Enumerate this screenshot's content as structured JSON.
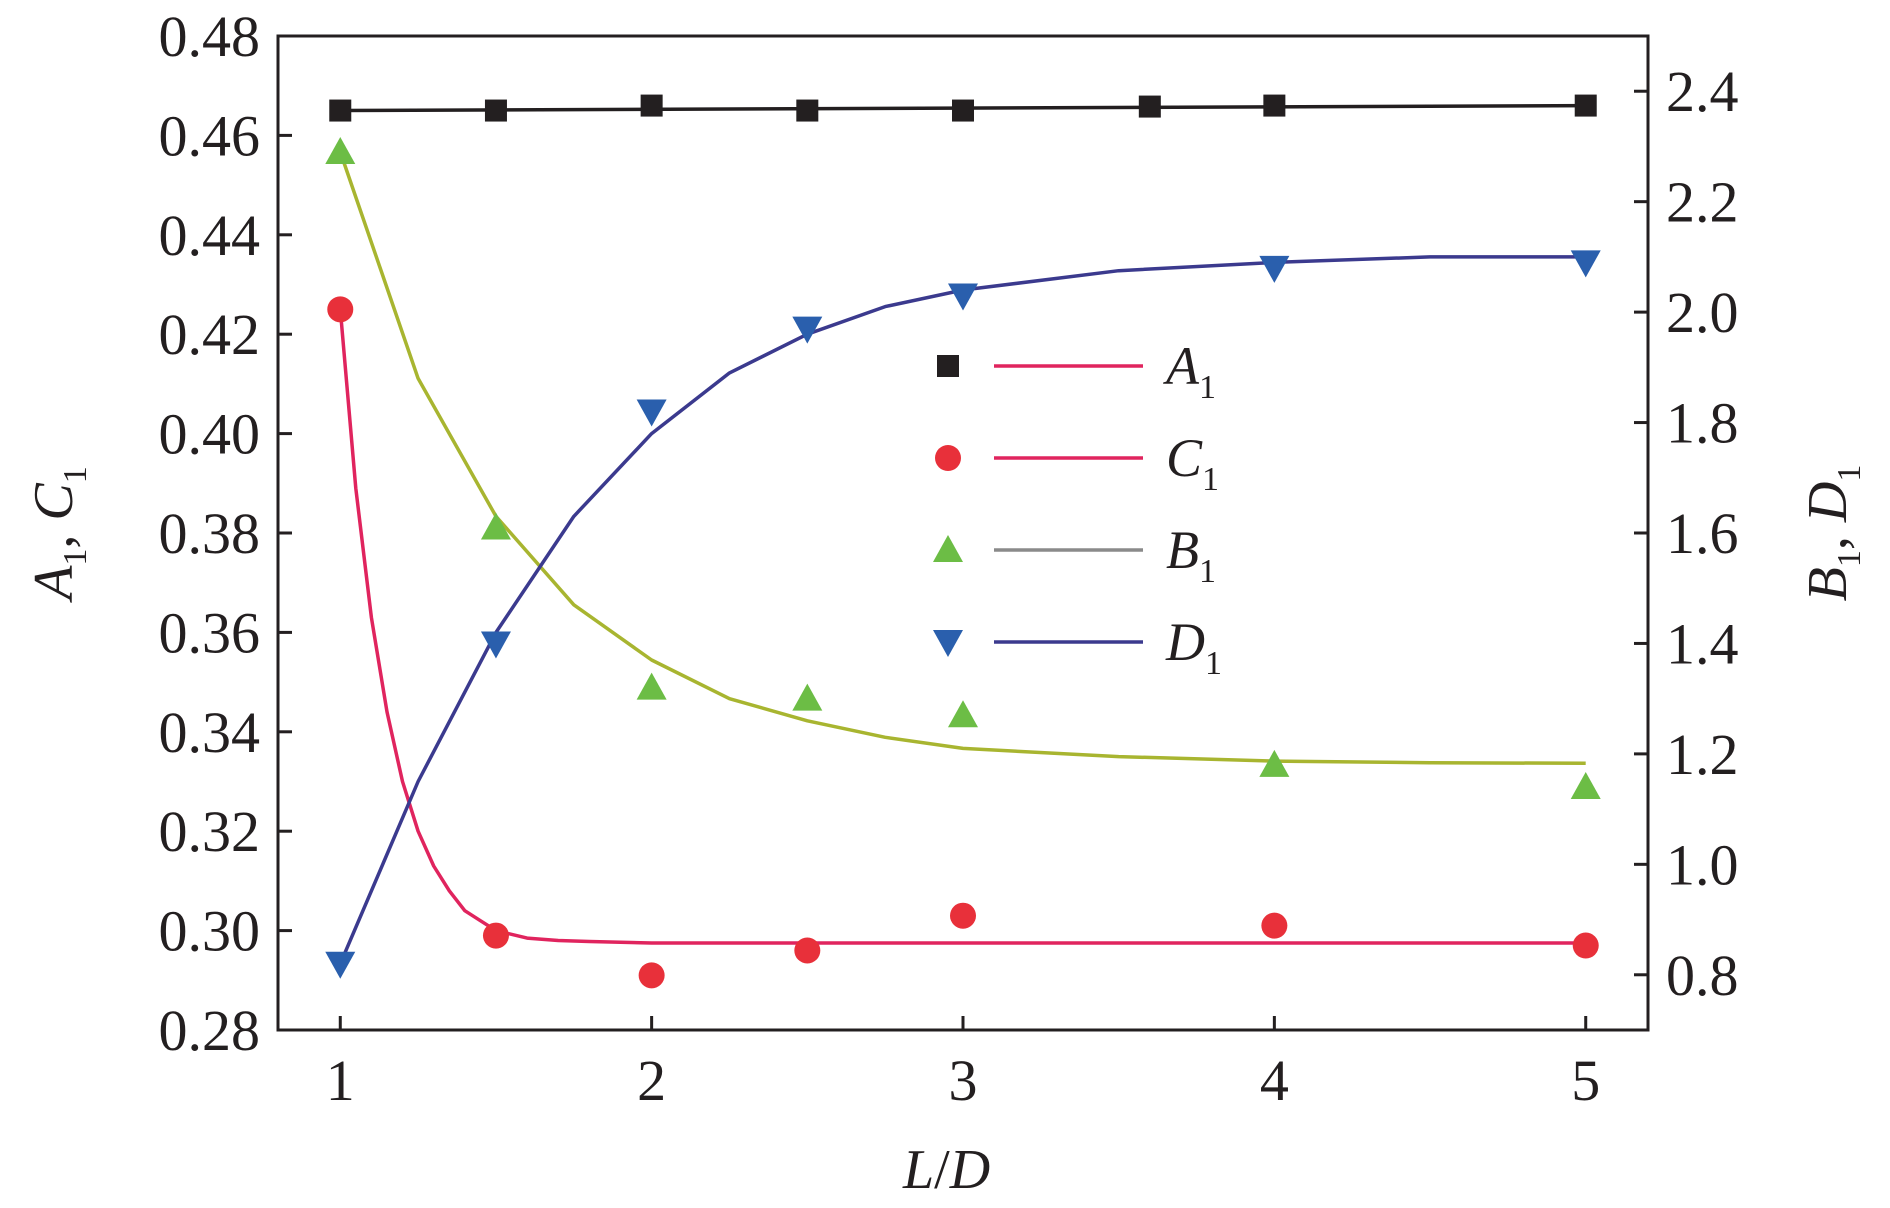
{
  "chart_data": {
    "type": "line",
    "x_label_parts": [
      "L",
      "/",
      "D"
    ],
    "left_axis_parts": [
      {
        "main": "A",
        "sub": "1"
      },
      {
        "main": "C",
        "sub": "1"
      }
    ],
    "right_axis_parts": [
      {
        "main": "B",
        "sub": "1"
      },
      {
        "main": "D",
        "sub": "1"
      }
    ],
    "xlim": [
      0.8,
      5.2
    ],
    "ylim_left": [
      0.28,
      0.48
    ],
    "ylim_right": [
      0.7,
      2.5
    ],
    "x_ticks": [
      "1",
      "2",
      "3",
      "4",
      "5"
    ],
    "y_left_ticks": [
      "0.28",
      "0.30",
      "0.32",
      "0.34",
      "0.36",
      "0.38",
      "0.40",
      "0.42",
      "0.44",
      "0.46",
      "0.48"
    ],
    "y_right_ticks": [
      "0.8",
      "1.0",
      "1.2",
      "1.4",
      "1.6",
      "1.8",
      "2.0",
      "2.2",
      "2.4"
    ],
    "grid": false,
    "legend_position": "center-right",
    "series": [
      {
        "name": "A",
        "sub": "1",
        "axis": "left",
        "marker": "square",
        "marker_color": "#231f20",
        "line_color": "#231f20",
        "legend_line_color": "#e0245e",
        "x": [
          1,
          1.5,
          2,
          2.5,
          3,
          3.6,
          4,
          5
        ],
        "values": [
          0.465,
          0.465,
          0.466,
          0.465,
          0.465,
          0.4658,
          0.466,
          0.466
        ],
        "fit_x": [
          1,
          5
        ],
        "fit_y": [
          0.465,
          0.466
        ]
      },
      {
        "name": "C",
        "sub": "1",
        "axis": "left",
        "marker": "circle",
        "marker_color": "#e8303a",
        "line_color": "#e0245e",
        "legend_line_color": "#e0245e",
        "x": [
          1,
          1.5,
          2,
          2.5,
          3,
          4,
          5
        ],
        "values": [
          0.425,
          0.299,
          0.291,
          0.296,
          0.303,
          0.301,
          0.297
        ],
        "fit_x": [
          1,
          1.05,
          1.1,
          1.15,
          1.2,
          1.25,
          1.3,
          1.35,
          1.4,
          1.45,
          1.5,
          1.6,
          1.7,
          1.8,
          2,
          2.5,
          3,
          4,
          5
        ],
        "fit_y": [
          0.425,
          0.389,
          0.363,
          0.344,
          0.33,
          0.32,
          0.313,
          0.308,
          0.304,
          0.302,
          0.3,
          0.2985,
          0.298,
          0.2978,
          0.2975,
          0.2975,
          0.2975,
          0.2975,
          0.2975
        ]
      },
      {
        "name": "B",
        "sub": "1",
        "axis": "right",
        "marker": "triangle-up",
        "marker_color": "#6cbd45",
        "line_color": "#a8b530",
        "legend_line_color": "#8a8a8a",
        "x": [
          1,
          1.5,
          2,
          2.5,
          3,
          4,
          5
        ],
        "values": [
          2.29,
          1.61,
          1.32,
          1.3,
          1.27,
          1.18,
          1.14
        ],
        "fit_x": [
          1,
          1.25,
          1.5,
          1.75,
          2,
          2.25,
          2.5,
          2.75,
          3,
          3.5,
          4,
          4.5,
          5
        ],
        "fit_y": [
          2.29,
          1.88,
          1.63,
          1.47,
          1.37,
          1.3,
          1.26,
          1.23,
          1.21,
          1.195,
          1.187,
          1.184,
          1.183
        ]
      },
      {
        "name": "D",
        "sub": "1",
        "axis": "right",
        "marker": "triangle-down",
        "marker_color": "#2a5fad",
        "line_color": "#3b3a8e",
        "legend_line_color": "#3b3a8e",
        "x": [
          1,
          1.5,
          2,
          2.5,
          3,
          4,
          5
        ],
        "values": [
          0.82,
          1.4,
          1.82,
          1.97,
          2.03,
          2.08,
          2.09
        ],
        "fit_x": [
          1,
          1.25,
          1.5,
          1.75,
          2,
          2.25,
          2.5,
          2.75,
          3,
          3.5,
          4,
          4.5,
          5
        ],
        "fit_y": [
          0.82,
          1.15,
          1.42,
          1.63,
          1.78,
          1.89,
          1.96,
          2.01,
          2.04,
          2.075,
          2.09,
          2.1,
          2.1
        ]
      }
    ]
  }
}
